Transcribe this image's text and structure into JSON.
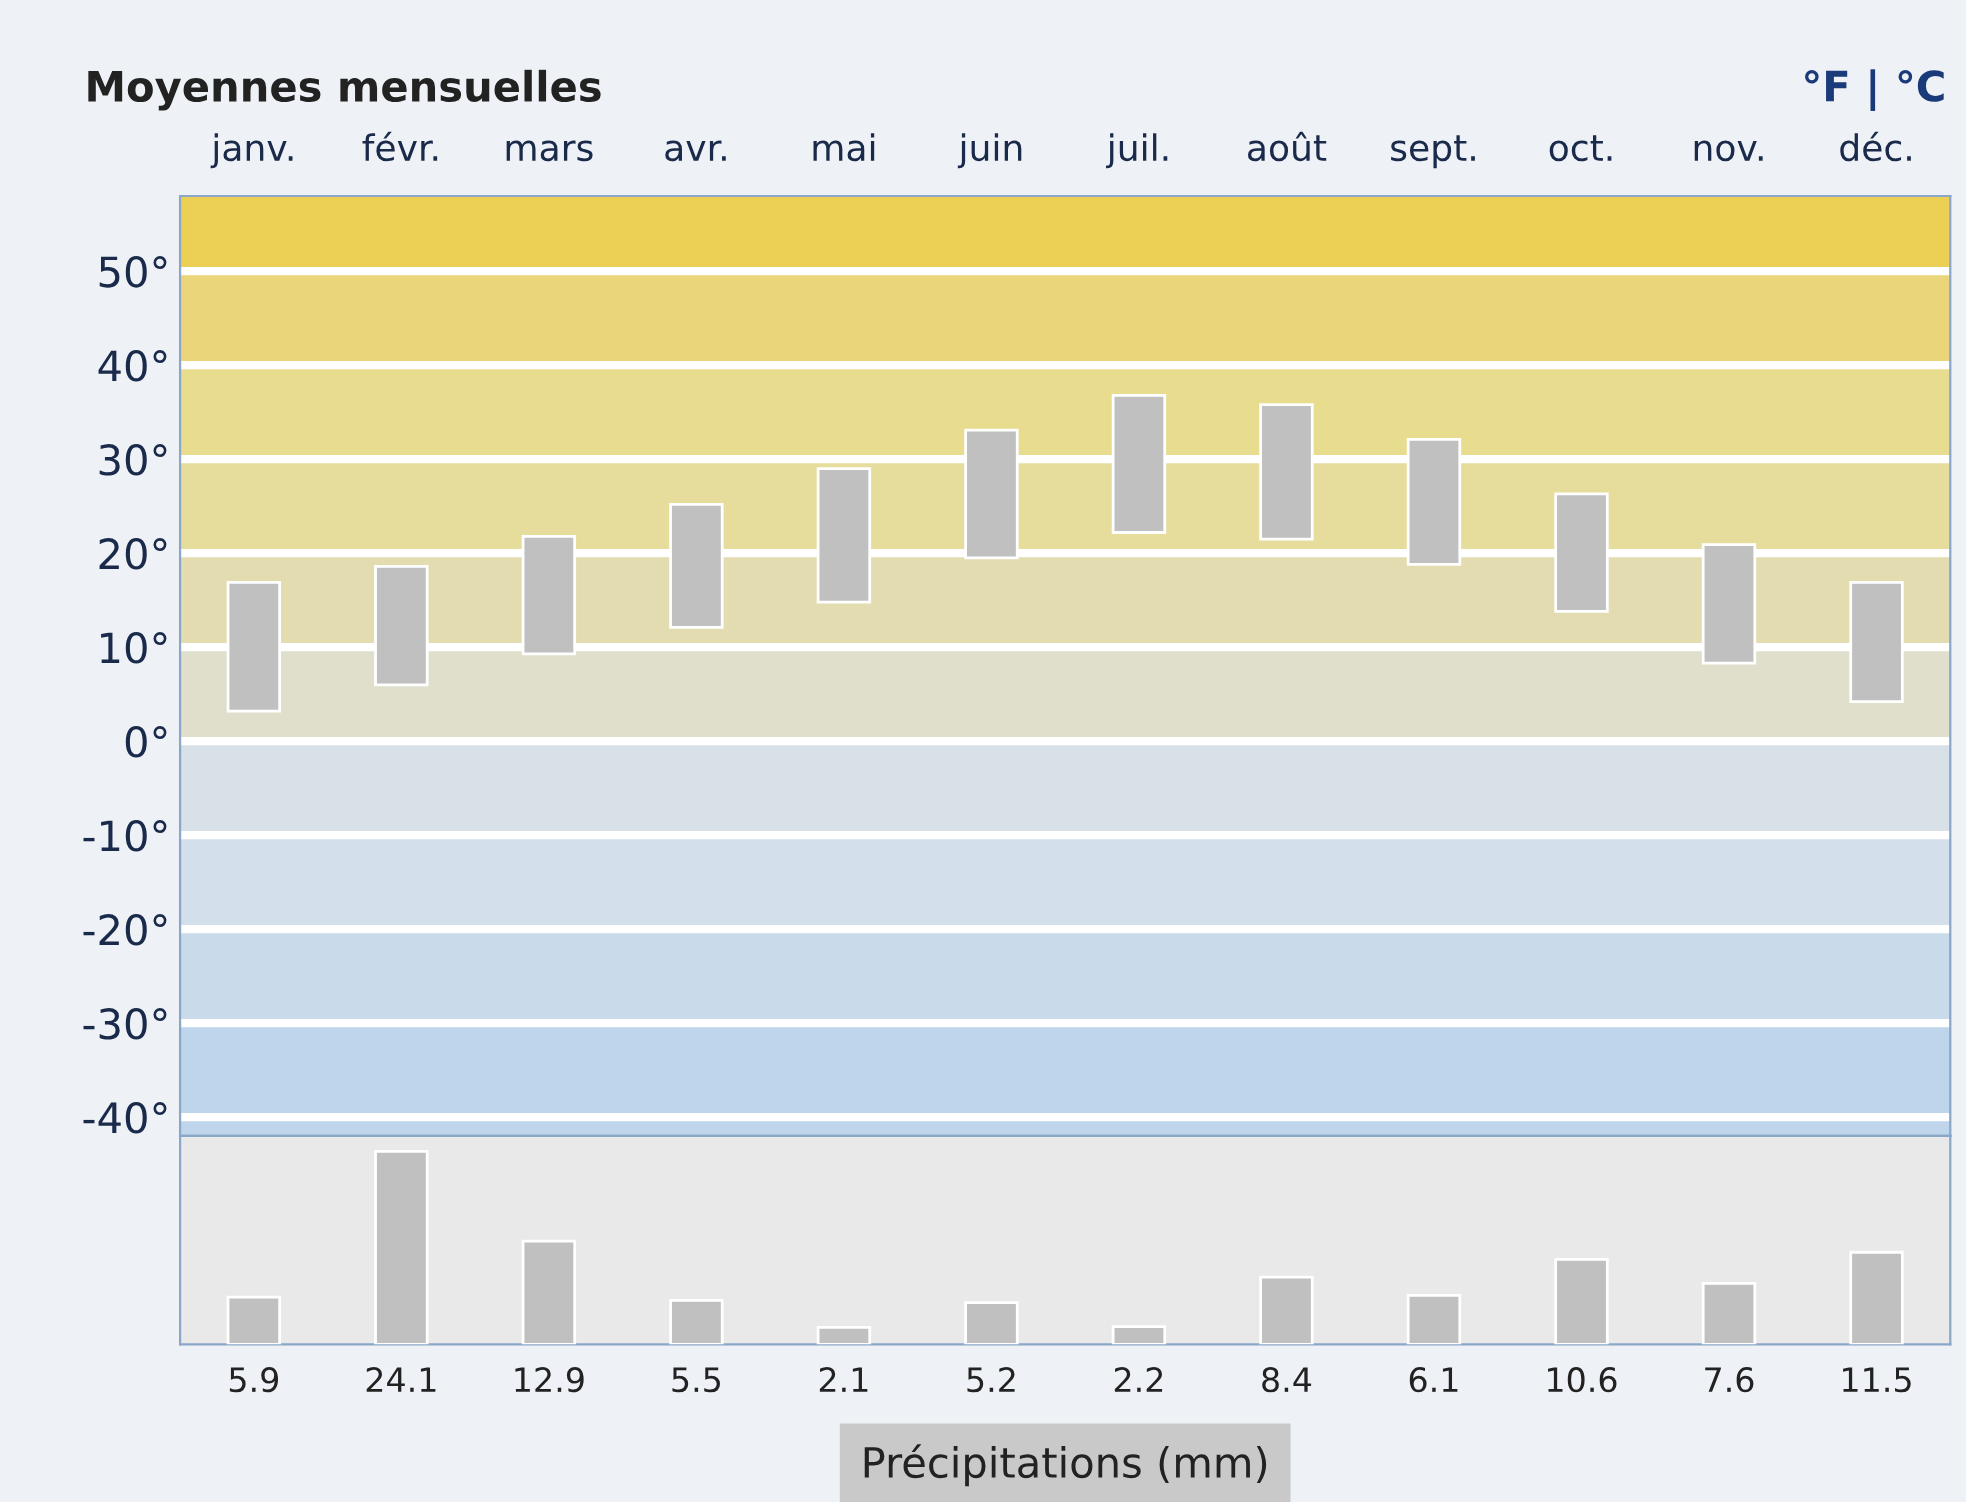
{
  "chart_data": [
    {
      "type": "bar",
      "title": "Moyennes mensuelles",
      "annotations": [
        "°F | °C"
      ],
      "categories": [
        "janv.",
        "févr.",
        "mars",
        "avr.",
        "mai",
        "juin",
        "juil.",
        "août",
        "sept.",
        "oct.",
        "nov.",
        "déc."
      ],
      "base": [
        3.2,
        6.0,
        9.3,
        12.1,
        14.8,
        19.5,
        22.2,
        21.5,
        18.8,
        13.8,
        8.3,
        4.2
      ],
      "values": [
        13.7,
        12.6,
        12.5,
        13.1,
        14.2,
        13.6,
        14.6,
        14.3,
        13.3,
        12.5,
        12.6,
        12.7
      ],
      "color": "#c0c0c0",
      "ylim": [
        -42,
        58
      ],
      "yticks": [
        {
          "value": -40,
          "label": "-40°"
        },
        {
          "value": -30,
          "label": "-30°"
        },
        {
          "value": -20,
          "label": "-20°"
        },
        {
          "value": -10,
          "label": "-10°"
        },
        {
          "value": 0,
          "label": "0°"
        },
        {
          "value": 10,
          "label": "10°"
        },
        {
          "value": 20,
          "label": "20°"
        },
        {
          "value": 30,
          "label": "30°"
        },
        {
          "value": 40,
          "label": "40°"
        },
        {
          "value": 50,
          "label": "50°"
        }
      ],
      "bands": [
        {
          "axis": "y",
          "from": 50,
          "to": 58,
          "color": "#ecd055"
        },
        {
          "axis": "y",
          "from": 40,
          "to": 50,
          "color": "#ebd57a"
        },
        {
          "axis": "y",
          "from": 30,
          "to": 40,
          "color": "#e8dc8e"
        },
        {
          "axis": "y",
          "from": 20,
          "to": 30,
          "color": "#e6dc9c"
        },
        {
          "axis": "y",
          "from": 10,
          "to": 20,
          "color": "#e2dcb0"
        },
        {
          "axis": "y",
          "from": 0,
          "to": 10,
          "color": "#dfdfcc"
        },
        {
          "axis": "y",
          "from": -10,
          "to": 0,
          "color": "#d8e0e8"
        },
        {
          "axis": "y",
          "from": -20,
          "to": -10,
          "color": "#d3dfea"
        },
        {
          "axis": "y",
          "from": -30,
          "to": -20,
          "color": "#c9daeb"
        },
        {
          "axis": "y",
          "from": -42,
          "to": -30,
          "color": "#bed5ec"
        }
      ],
      "grid": "y"
    },
    {
      "type": "bar",
      "xlabel": "Précipitations (mm)",
      "categories": [
        null,
        null,
        null,
        null,
        null,
        null,
        null,
        null,
        null,
        null,
        null,
        null
      ],
      "values": [
        5.9,
        24.1,
        12.9,
        5.5,
        2.1,
        5.2,
        2.2,
        8.4,
        6.1,
        10.6,
        7.6,
        11.5
      ],
      "color": "#c0c0c0",
      "data_labels": true
    }
  ]
}
